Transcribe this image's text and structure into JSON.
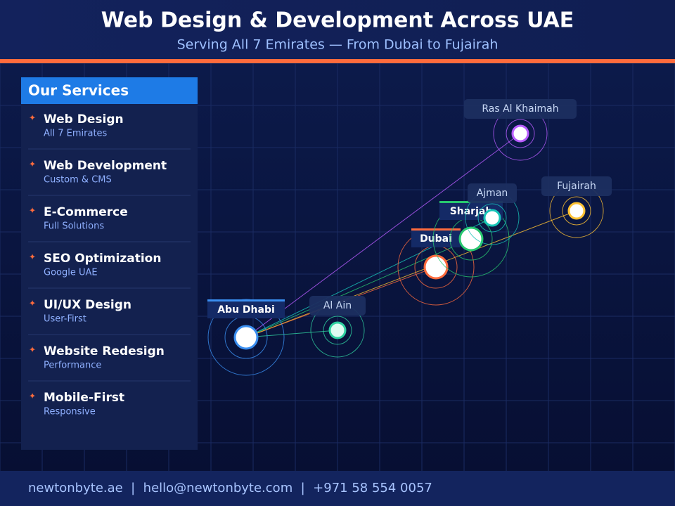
{
  "header": {
    "title": "Web Design & Development Across UAE",
    "subtitle": "Serving All 7 Emirates — From Dubai to Fujairah"
  },
  "services": {
    "title": "Our Services",
    "items": [
      {
        "name": "Web Design",
        "detail": "All 7 Emirates"
      },
      {
        "name": "Web Development",
        "detail": "Custom & CMS"
      },
      {
        "name": "E-Commerce",
        "detail": "Full Solutions"
      },
      {
        "name": "SEO Optimization",
        "detail": "Google UAE"
      },
      {
        "name": "UI/UX Design",
        "detail": "User-First"
      },
      {
        "name": "Website Redesign",
        "detail": "Performance"
      },
      {
        "name": "Mobile-First",
        "detail": "Responsive"
      }
    ]
  },
  "cities": [
    {
      "label": "Abu Dhabi"
    },
    {
      "label": "Al Ain"
    },
    {
      "label": "Dubai"
    },
    {
      "label": "Sharjah"
    },
    {
      "label": "Ajman"
    },
    {
      "label": "Ras Al Khaimah"
    },
    {
      "label": "Fujairah"
    }
  ],
  "footer": {
    "text": "newtonbyte.ae  |  hello@newtonbyte.com  |  +971 58 554 0057"
  }
}
